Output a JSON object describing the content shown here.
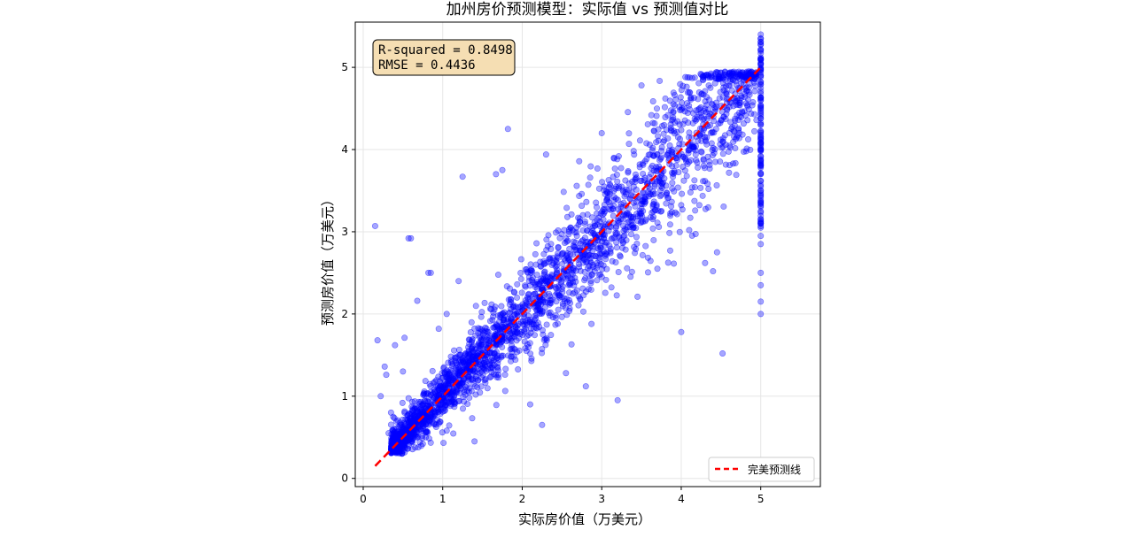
{
  "chart_data": {
    "type": "scatter",
    "title": "加州房价预测模型：实际值 vs 预测值对比",
    "xlabel": "实际房价值（万美元）",
    "ylabel": "预测房价值（万美元）",
    "xlim": [
      -0.1,
      5.75
    ],
    "ylim": [
      -0.1,
      5.55
    ],
    "xticks": [
      0,
      1,
      2,
      3,
      4,
      5
    ],
    "yticks": [
      0,
      1,
      2,
      3,
      4,
      5
    ],
    "grid": true,
    "point_color": "#0000ff",
    "point_alpha": 0.35,
    "reference_line": {
      "name": "完美预测线",
      "x": [
        0.15,
        5.0
      ],
      "y": [
        0.15,
        5.0
      ],
      "color": "#ff0000",
      "style": "dashed"
    },
    "annotation": {
      "lines": [
        "R-squared = 0.8498",
        "RMSE = 0.4436"
      ],
      "position": "top-left",
      "background": "#f5deb3"
    },
    "legend": {
      "position": "bottom-right",
      "entries": [
        "完美预测线"
      ]
    },
    "series": [
      {
        "values": [
          [
            0.15,
            3.07
          ],
          [
            0.18,
            1.68
          ],
          [
            0.22,
            1.0
          ],
          [
            0.27,
            1.36
          ],
          [
            0.29,
            1.26
          ],
          [
            0.35,
            0.8
          ],
          [
            0.57,
            2.92
          ],
          [
            0.6,
            2.92
          ],
          [
            0.82,
            2.5
          ],
          [
            0.85,
            2.5
          ],
          [
            0.68,
            2.16
          ],
          [
            1.2,
            2.4
          ],
          [
            1.25,
            3.67
          ],
          [
            1.67,
            3.7
          ],
          [
            1.75,
            3.75
          ],
          [
            1.82,
            4.25
          ],
          [
            2.25,
            0.65
          ],
          [
            2.62,
            1.63
          ],
          [
            2.8,
            1.12
          ],
          [
            3.2,
            0.95
          ],
          [
            2.3,
            3.94
          ],
          [
            3.0,
            4.2
          ],
          [
            3.5,
            4.78
          ],
          [
            3.5,
            3.62
          ],
          [
            4.52,
            1.52
          ],
          [
            4.3,
            2.62
          ],
          [
            4.4,
            2.52
          ],
          [
            4.45,
            2.75
          ],
          [
            4.0,
            1.78
          ],
          [
            3.7,
            2.55
          ],
          [
            3.45,
            2.21
          ],
          [
            3.0,
            2.45
          ],
          [
            3.8,
            4.62
          ],
          [
            4.65,
            4.85
          ],
          [
            4.85,
            4.95
          ],
          [
            4.1,
            3.02
          ],
          [
            4.3,
            4.71
          ],
          [
            3.9,
            4.45
          ],
          [
            2.55,
            1.28
          ],
          [
            2.1,
            0.9
          ],
          [
            1.4,
            0.45
          ],
          [
            1.05,
            0.58
          ],
          [
            0.75,
            0.42
          ],
          [
            0.45,
            0.35
          ],
          [
            0.95,
            1.82
          ],
          [
            1.05,
            2.0
          ],
          [
            0.52,
            1.71
          ],
          [
            0.5,
            1.3
          ],
          [
            0.4,
            1.62
          ],
          [
            0.32,
            0.55
          ]
        ]
      }
    ],
    "cap_column": {
      "x": 5.0,
      "y_values": [
        2.0,
        2.15,
        2.5,
        2.35,
        2.85,
        2.95,
        3.05,
        3.1,
        3.15,
        3.25,
        3.35,
        3.45,
        3.55,
        3.62,
        3.7,
        3.78,
        3.85,
        3.92,
        4.0,
        4.08,
        4.15,
        4.22,
        4.3,
        4.38,
        4.45,
        4.52,
        4.6,
        4.68,
        4.75,
        4.82,
        4.9,
        4.98,
        5.05,
        5.12,
        5.2,
        5.28,
        5.35,
        5.4
      ]
    }
  }
}
